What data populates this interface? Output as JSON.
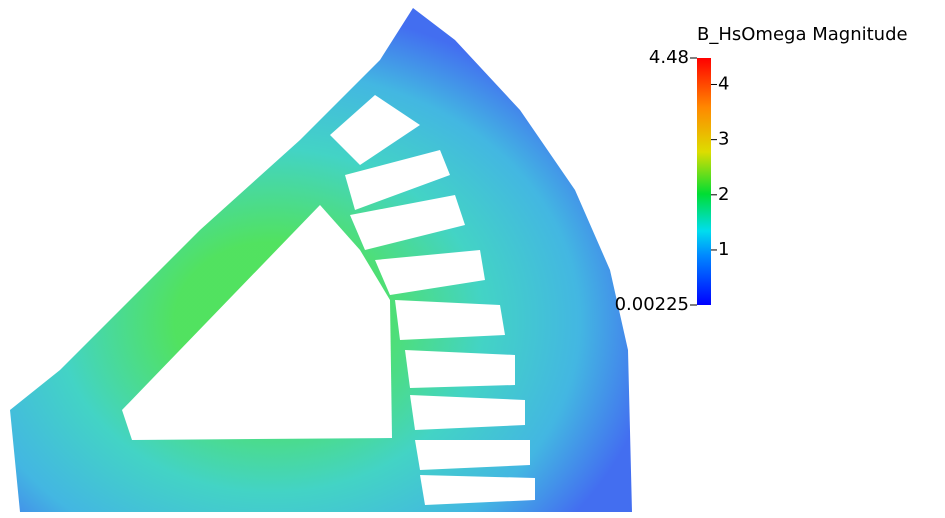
{
  "colorbar": {
    "title": "B_HsOmega Magnitude",
    "range": [
      0.00225,
      4.48
    ],
    "ticks": [
      1,
      2,
      3,
      4
    ]
  }
}
